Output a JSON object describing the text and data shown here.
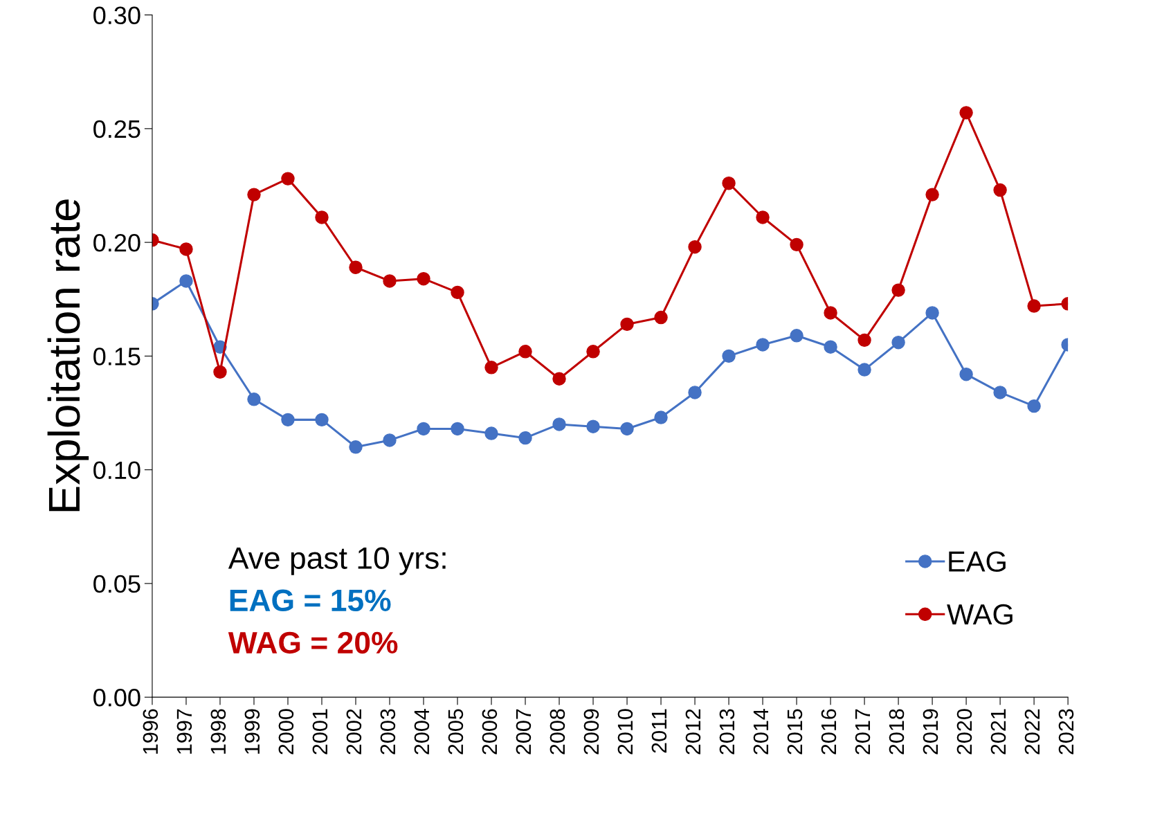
{
  "chart_data": {
    "type": "line",
    "ylabel": "Exploitation rate",
    "categories": [
      "1996",
      "1997",
      "1998",
      "1999",
      "2000",
      "2001",
      "2002",
      "2003",
      "2004",
      "2005",
      "2006",
      "2007",
      "2008",
      "2009",
      "2010",
      "2011",
      "2012",
      "2013",
      "2014",
      "2015",
      "2016",
      "2017",
      "2018",
      "2019",
      "2020",
      "2021",
      "2022",
      "2023"
    ],
    "series": [
      {
        "name": "EAG",
        "color": "#4472c4",
        "values": [
          0.173,
          0.183,
          0.154,
          0.131,
          0.122,
          0.122,
          0.11,
          0.113,
          0.118,
          0.118,
          0.116,
          0.114,
          0.12,
          0.119,
          0.118,
          0.123,
          0.134,
          0.15,
          0.155,
          0.159,
          0.154,
          0.144,
          0.156,
          0.169,
          0.142,
          0.134,
          0.128,
          0.155
        ]
      },
      {
        "name": "WAG",
        "color": "#c00000",
        "values": [
          0.201,
          0.197,
          0.143,
          0.221,
          0.228,
          0.211,
          0.189,
          0.183,
          0.184,
          0.178,
          0.145,
          0.152,
          0.14,
          0.152,
          0.164,
          0.167,
          0.198,
          0.226,
          0.211,
          0.199,
          0.169,
          0.157,
          0.179,
          0.221,
          0.257,
          0.223,
          0.172,
          0.173
        ]
      }
    ],
    "ylim": [
      0,
      0.3
    ],
    "yticks": [
      {
        "value": 0,
        "label": "0.00"
      },
      {
        "value": 0.05,
        "label": "0.05"
      },
      {
        "value": 0.1,
        "label": "0.10"
      },
      {
        "value": 0.15,
        "label": "0.15"
      },
      {
        "value": 0.2,
        "label": "0.20"
      },
      {
        "value": 0.25,
        "label": "0.25"
      },
      {
        "value": 0.3,
        "label": "0.30"
      }
    ],
    "annotations": [
      "Ave past 10 yrs:",
      "EAG = 15%",
      "WAG = 20%"
    ],
    "legend": "bottom right",
    "marker": "circle",
    "line_style": "solid",
    "grid": false
  }
}
